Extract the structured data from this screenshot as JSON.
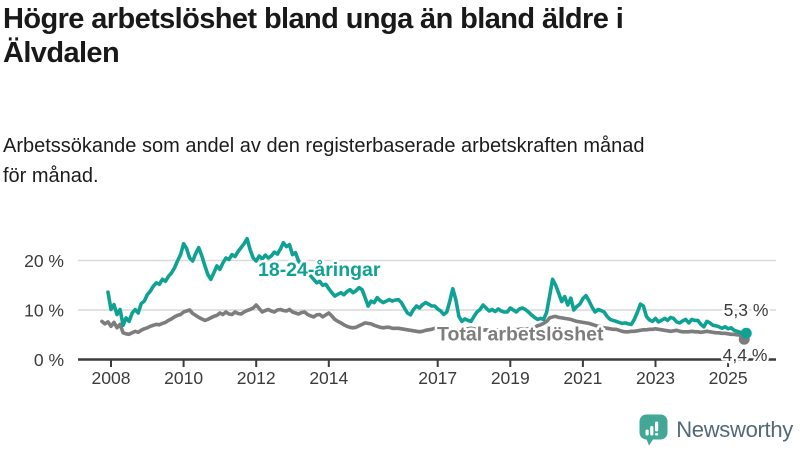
{
  "header": {
    "title": "Högre arbetslöshet bland unga än bland äldre i Älvdalen",
    "title_lines": [
      "Högre arbetslöshet bland unga än bland äldre i",
      "Älvdalen"
    ],
    "subtitle": "Arbetssökande som andel av den registerbaserade arbetskraften månad för månad.",
    "subtitle_lines": [
      "Arbetssökande som andel av den registerbaserade arbetskraften månad",
      "för månad."
    ]
  },
  "colors": {
    "accent_teal": "#0fa294",
    "series_gray": "#7d7d7d",
    "axis": "#3c3c3c",
    "gridline": "#d9d9d9",
    "logo_teal": "#43a797",
    "brand_text": "#52697a"
  },
  "chart_data": {
    "type": "line",
    "title": "Arbetssökande som andel av den registerbaserade arbetskraften månad för månad",
    "xlabel": "",
    "ylabel": "",
    "x_start": 2007.75,
    "x_step": 0.0833333,
    "x_ticks": [
      2008,
      2010,
      2012,
      2014,
      2017,
      2019,
      2021,
      2023,
      2025
    ],
    "y_ticks": [
      {
        "value": 0,
        "label": "0 %"
      },
      {
        "value": 10,
        "label": "10 %"
      },
      {
        "value": 20,
        "label": "20 %"
      }
    ],
    "ylim": [
      0,
      26
    ],
    "grid": "horizontal",
    "legend_position": "inline-labels",
    "series": [
      {
        "name": "18-24-åringar",
        "color": "#0fa294",
        "end_label": "5,3 %",
        "end_value": 5.3,
        "values": [
          null,
          null,
          13.6,
          10.1,
          11.1,
          9.1,
          10.1,
          6.9,
          8.4,
          7.7,
          9.4,
          10.1,
          9.4,
          11.3,
          11.8,
          13.1,
          13.8,
          14.8,
          15.5,
          15.2,
          16.2,
          15.8,
          16.8,
          17.5,
          18.5,
          19.9,
          21.2,
          23.4,
          22.4,
          20.5,
          19.9,
          21.4,
          22.6,
          21.0,
          19.0,
          17.2,
          16.2,
          17.5,
          18.9,
          18.2,
          19.5,
          20.5,
          20.2,
          21.2,
          20.8,
          21.8,
          22.6,
          23.4,
          24.4,
          22.2,
          20.5,
          19.9,
          20.9,
          20.3,
          21.1,
          20.5,
          20.9,
          21.7,
          21.3,
          22.3,
          23.6,
          22.8,
          23.2,
          21.2,
          21.6,
          19.9,
          19.2,
          18.4,
          17.7,
          16.9,
          16.2,
          15.5,
          15.8,
          15.0,
          15.2,
          14.3,
          13.5,
          12.8,
          13.2,
          13.5,
          13.1,
          13.7,
          14.1,
          13.5,
          13.9,
          14.5,
          14.1,
          12.5,
          10.8,
          11.8,
          11.5,
          12.5,
          11.9,
          11.5,
          11.8,
          12.1,
          11.8,
          12.0,
          12.1,
          11.5,
          10.4,
          9.4,
          9.0,
          10.1,
          10.8,
          10.4,
          11.1,
          11.5,
          11.2,
          10.8,
          10.8,
          10.2,
          9.8,
          9.1,
          9.6,
          11.8,
          14.3,
          12.1,
          8.7,
          7.7,
          8.2,
          7.9,
          7.7,
          8.7,
          9.6,
          10.1,
          11.0,
          10.4,
          9.8,
          10.1,
          9.7,
          10.2,
          9.8,
          9.6,
          9.6,
          10.4,
          10.0,
          9.6,
          10.2,
          10.4,
          10.1,
          9.6,
          9.0,
          8.5,
          8.1,
          8.3,
          8.1,
          9.5,
          12.8,
          16.2,
          15.0,
          13.4,
          11.7,
          12.7,
          11.0,
          12.4,
          10.0,
          10.7,
          11.2,
          12.3,
          12.9,
          11.9,
          10.6,
          9.6,
          10.1,
          9.9,
          9.6,
          8.7,
          8.1,
          7.9,
          7.7,
          7.5,
          7.3,
          7.4,
          7.2,
          7.1,
          8.1,
          9.5,
          11.2,
          10.8,
          8.7,
          8.0,
          7.7,
          8.3,
          7.6,
          7.9,
          8.3,
          7.9,
          8.5,
          8.3,
          7.6,
          7.4,
          7.8,
          8.1,
          7.4,
          8.1,
          7.9,
          7.9,
          7.1,
          6.6,
          7.7,
          7.4,
          6.9,
          6.8,
          6.6,
          6.3,
          6.6,
          6.2,
          6.4,
          5.9,
          5.7,
          5.5,
          5.4,
          5.3
        ]
      },
      {
        "name": "Total arbetslöshet",
        "color": "#7d7d7d",
        "end_label": "4,4 %",
        "end_value": 4.4,
        "values": [
          7.7,
          7.2,
          7.6,
          6.7,
          7.5,
          6.4,
          7.1,
          5.4,
          5.2,
          5.1,
          5.4,
          5.7,
          5.5,
          5.9,
          6.2,
          6.4,
          6.7,
          6.9,
          7.1,
          7.0,
          7.3,
          7.5,
          7.9,
          8.2,
          8.6,
          8.9,
          9.1,
          9.6,
          9.8,
          10.0,
          9.3,
          8.9,
          8.5,
          8.2,
          7.9,
          8.1,
          8.4,
          8.7,
          8.9,
          9.4,
          9.1,
          9.6,
          9.2,
          9.1,
          9.6,
          9.3,
          9.2,
          9.6,
          9.9,
          10.1,
          10.4,
          11.0,
          10.3,
          9.6,
          9.9,
          10.1,
          9.8,
          9.6,
          10.0,
          10.1,
          9.9,
          9.8,
          10.1,
          9.6,
          9.4,
          9.2,
          9.5,
          9.6,
          9.1,
          8.8,
          8.6,
          9.0,
          9.1,
          8.6,
          9.0,
          9.4,
          8.8,
          8.1,
          7.7,
          7.4,
          7.0,
          6.7,
          6.5,
          6.4,
          6.5,
          6.8,
          7.1,
          7.4,
          7.3,
          7.2,
          6.9,
          6.7,
          6.5,
          6.4,
          6.5,
          6.5,
          6.3,
          6.3,
          6.3,
          6.2,
          6.1,
          6.0,
          5.9,
          5.8,
          5.7,
          5.6,
          5.7,
          5.9,
          6.0,
          6.1,
          6.3,
          6.4,
          6.3,
          6.2,
          6.1,
          6.0,
          6.1,
          5.9,
          6.0,
          5.9,
          6.1,
          6.2,
          6.3,
          6.2,
          6.1,
          6.0,
          5.9,
          6.0,
          5.9,
          5.8,
          5.9,
          6.0,
          5.9,
          6.0,
          6.1,
          6.0,
          6.1,
          6.0,
          6.1,
          6.2,
          6.1,
          6.2,
          6.3,
          6.5,
          6.8,
          7.0,
          7.3,
          7.7,
          8.4,
          8.6,
          8.7,
          8.5,
          8.4,
          8.3,
          8.2,
          8.1,
          7.9,
          7.7,
          7.6,
          7.5,
          7.4,
          7.3,
          7.1,
          6.9,
          6.7,
          6.6,
          6.4,
          6.3,
          6.2,
          6.1,
          6.1,
          5.9,
          5.7,
          5.6,
          5.6,
          5.7,
          5.7,
          5.8,
          5.9,
          6.0,
          6.0,
          6.1,
          6.1,
          6.2,
          6.1,
          6.0,
          5.9,
          5.8,
          5.7,
          5.8,
          5.9,
          5.7,
          5.6,
          5.6,
          5.6,
          5.7,
          5.6,
          5.6,
          5.5,
          5.6,
          5.7,
          5.6,
          5.5,
          5.4,
          5.4,
          5.3,
          5.3,
          5.2,
          5.1,
          5.1,
          5.0,
          4.9,
          4.7,
          4.4
        ]
      }
    ]
  },
  "footer": {
    "brand_name": "Newsworthy",
    "logo_icon": "newsworthy-speech-bubble-bars-icon"
  }
}
